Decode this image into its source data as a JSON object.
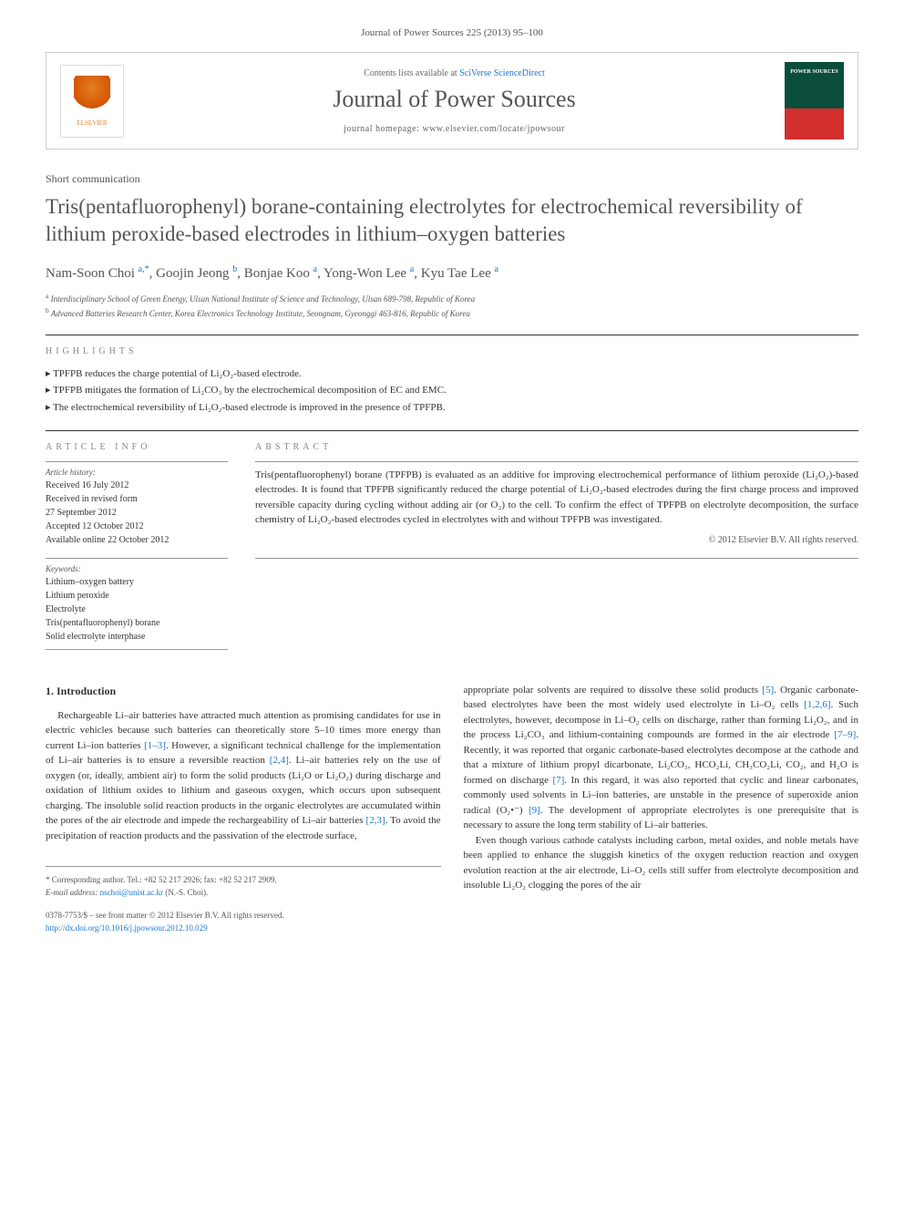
{
  "journal_ref": "Journal of Power Sources 225 (2013) 95–100",
  "header": {
    "contents_prefix": "Contents lists available at ",
    "contents_link": "SciVerse ScienceDirect",
    "journal_name": "Journal of Power Sources",
    "homepage_prefix": "journal homepage: ",
    "homepage_url": "www.elsevier.com/locate/jpowsour",
    "publisher": "ELSEVIER"
  },
  "article_type": "Short communication",
  "title": "Tris(pentafluorophenyl) borane-containing electrolytes for electrochemical reversibility of lithium peroxide-based electrodes in lithium–oxygen batteries",
  "authors_html": "Nam-Soon Choi <sup>a,*</sup>, Goojin Jeong <sup>b</sup>, Bonjae Koo <sup>a</sup>, Yong-Won Lee <sup>a</sup>, Kyu Tae Lee <sup>a</sup>",
  "affiliations": [
    {
      "sup": "a",
      "text": "Interdisciplinary School of Green Energy, Ulsan National Institute of Science and Technology, Ulsan 689-798, Republic of Korea"
    },
    {
      "sup": "b",
      "text": "Advanced Batteries Research Center, Korea Electronics Technology Institute, Seongnam, Gyeonggi 463-816, Republic of Korea"
    }
  ],
  "highlights_label": "HIGHLIGHTS",
  "highlights": [
    "TPFPB reduces the charge potential of Li₂O₂-based electrode.",
    "TPFPB mitigates the formation of Li₂CO₃ by the electrochemical decomposition of EC and EMC.",
    "The electrochemical reversibility of Li₂O₂-based electrode is improved in the presence of TPFPB."
  ],
  "article_info_label": "ARTICLE INFO",
  "abstract_label": "ABSTRACT",
  "history_label": "Article history:",
  "history": [
    "Received 16 July 2012",
    "Received in revised form",
    "27 September 2012",
    "Accepted 12 October 2012",
    "Available online 22 October 2012"
  ],
  "keywords_label": "Keywords:",
  "keywords": [
    "Lithium–oxygen battery",
    "Lithium peroxide",
    "Electrolyte",
    "Tris(pentafluorophenyl) borane",
    "Solid electrolyte interphase"
  ],
  "abstract": "Tris(pentafluorophenyl) borane (TPFPB) is evaluated as an additive for improving electrochemical performance of lithium peroxide (Li₂O₂)-based electrodes. It is found that TPFPB significantly reduced the charge potential of Li₂O₂-based electrodes during the first charge process and improved reversible capacity during cycling without adding air (or O₂) to the cell. To confirm the effect of TPFPB on electrolyte decomposition, the surface chemistry of Li₂O₂-based electrodes cycled in electrolytes with and without TPFPB was investigated.",
  "copyright": "© 2012 Elsevier B.V. All rights reserved.",
  "intro_heading": "1. Introduction",
  "intro_col1": "Rechargeable Li–air batteries have attracted much attention as promising candidates for use in electric vehicles because such batteries can theoretically store 5–10 times more energy than current Li–ion batteries [1–3]. However, a significant technical challenge for the implementation of Li–air batteries is to ensure a reversible reaction [2,4]. Li–air batteries rely on the use of oxygen (or, ideally, ambient air) to form the solid products (Li₂O or Li₂O₂) during discharge and oxidation of lithium oxides to lithium and gaseous oxygen, which occurs upon subsequent charging. The insoluble solid reaction products in the organic electrolytes are accumulated within the pores of the air electrode and impede the rechargeability of Li–air batteries [2,3]. To avoid the precipitation of reaction products and the passivation of the electrode surface,",
  "intro_col2_p1": "appropriate polar solvents are required to dissolve these solid products [5]. Organic carbonate-based electrolytes have been the most widely used electrolyte in Li–O₂ cells [1,2,6]. Such electrolytes, however, decompose in Li–O₂ cells on discharge, rather than forming Li₂O₂, and in the process Li₂CO₃ and lithium-containing compounds are formed in the air electrode [7–9]. Recently, it was reported that organic carbonate-based electrolytes decompose at the cathode and that a mixture of lithium propyl dicarbonate, Li₂CO₃, HCO₂Li, CH₃CO₂Li, CO₂, and H₂O is formed on discharge [7]. In this regard, it was also reported that cyclic and linear carbonates, commonly used solvents in Li–ion batteries, are unstable in the presence of superoxide anion radical (O₂•⁻) [9]. The development of appropriate electrolytes is one prerequisite that is necessary to assure the long term stability of Li–air batteries.",
  "intro_col2_p2": "Even though various cathode catalysts including carbon, metal oxides, and noble metals have been applied to enhance the sluggish kinetics of the oxygen reduction reaction and oxygen evolution reaction at the air electrode, Li–O₂ cells still suffer from electrolyte decomposition and insoluble Li₂O₂ clogging the pores of the air",
  "corresponding": {
    "label": "* Corresponding author. Tel.: +82 52 217 2926; fax: +82 52 217 2909.",
    "email_label": "E-mail address: ",
    "email": "nschoi@unist.ac.kr",
    "email_suffix": " (N.-S. Choi)."
  },
  "front_matter": "0378-7753/$ – see front matter © 2012 Elsevier B.V. All rights reserved.",
  "doi": "http://dx.doi.org/10.1016/j.jpowsour.2012.10.029",
  "colors": {
    "link": "#1976d2",
    "text": "#333333",
    "muted": "#555555",
    "border": "#cccccc"
  }
}
